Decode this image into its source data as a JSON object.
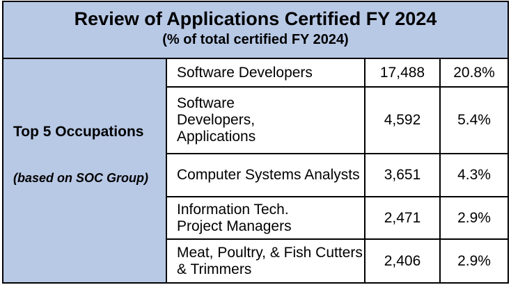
{
  "title": "Review of Applications Certified FY 2024",
  "subtitle": "(% of total certified FY 2024)",
  "side_label": {
    "main": "Top 5 Occupations",
    "sub": "(based on SOC Group)"
  },
  "rows": [
    {
      "occupation": "Software Developers",
      "count": "17,488",
      "percent": "20.8%"
    },
    {
      "occupation": "Software Developers, Applications",
      "count": "4,592",
      "percent": "5.4%"
    },
    {
      "occupation": "Computer Systems Analysts",
      "count": "3,651",
      "percent": "4.3%"
    },
    {
      "occupation": "Information Tech. Project Managers",
      "count": "2,471",
      "percent": "2.9%"
    },
    {
      "occupation": "Meat, Poultry, & Fish Cutters & Trimmers",
      "count": "2,406",
      "percent": "2.9%"
    }
  ],
  "colors": {
    "header_fill": "#b8c9e6",
    "border": "#000000"
  }
}
